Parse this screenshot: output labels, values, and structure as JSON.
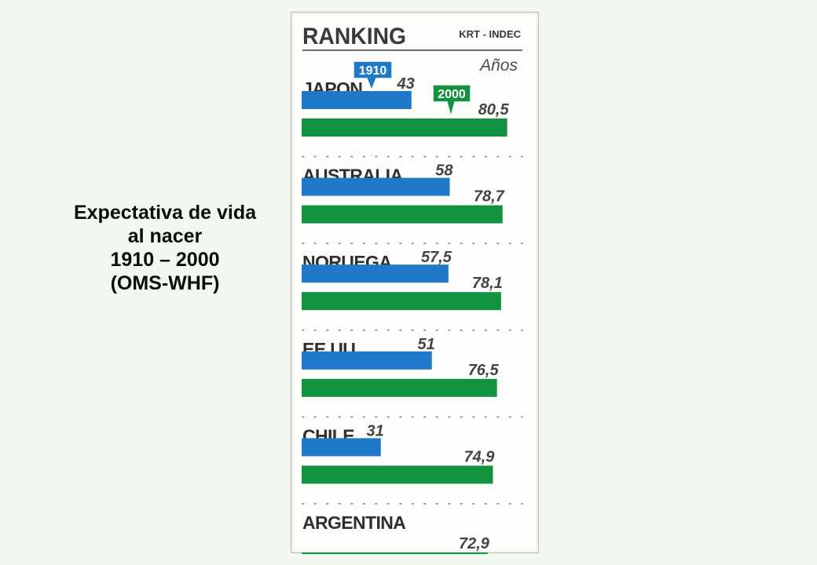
{
  "caption": {
    "line1": "Expectativa de vida",
    "line2": "al nacer",
    "line3": "1910 – 2000",
    "line4": "(OMS-WHF)"
  },
  "chart_data": {
    "type": "bar",
    "title": "RANKING",
    "source": "KRT - INDEC",
    "unit": "Años",
    "categories": [
      "JAPON",
      "AUSTRALIA",
      "NORUEGA",
      "EE.UU.",
      "CHILE",
      "ARGENTINA"
    ],
    "series": [
      {
        "name": "1910",
        "color": "#1f78c8",
        "values": [
          43,
          58,
          57.5,
          51,
          31,
          null
        ]
      },
      {
        "name": "2000",
        "color": "#12913f",
        "values": [
          80.5,
          78.7,
          78.1,
          76.5,
          74.9,
          72.9
        ]
      }
    ],
    "value_labels": {
      "1910": [
        "43",
        "58",
        "57,5",
        "51",
        "31",
        ""
      ],
      "2000": [
        "80,5",
        "78,7",
        "78,1",
        "76,5",
        "74,9",
        "72,9"
      ]
    },
    "legend": "inline-callouts-on-first-category",
    "grid": false
  }
}
